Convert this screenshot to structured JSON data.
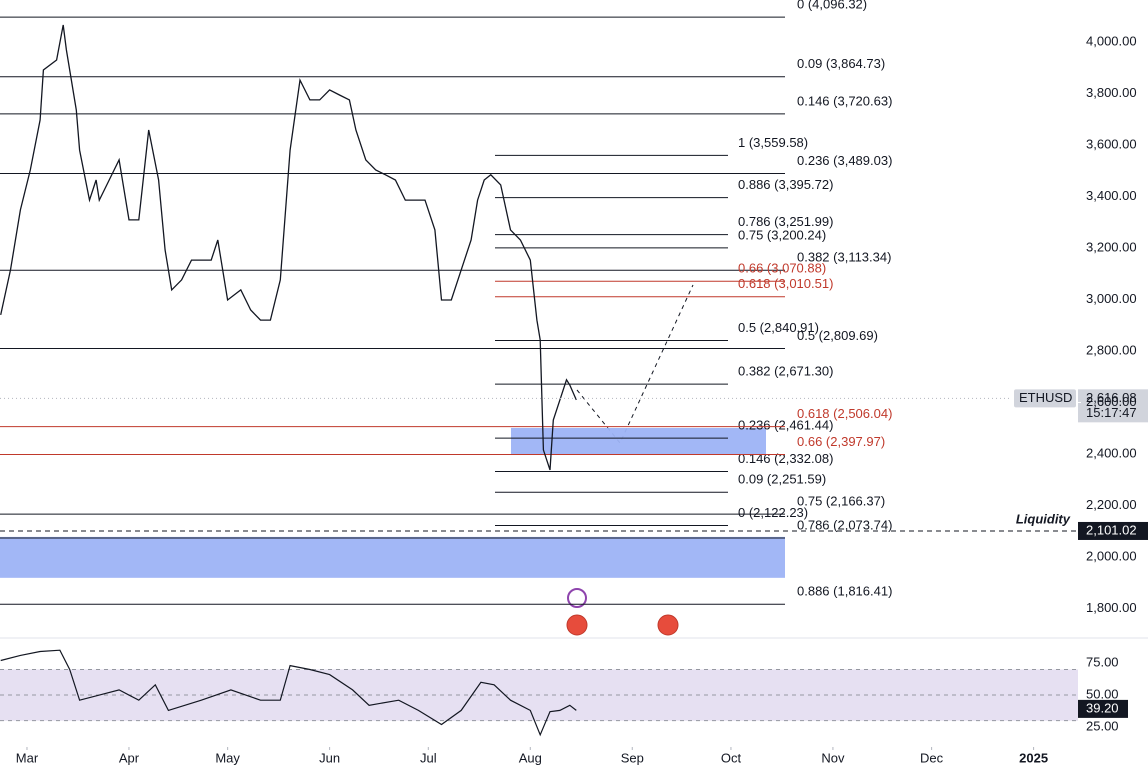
{
  "chart_data": {
    "type": "line",
    "symbol": "ETHUSD",
    "last_price": {
      "value": 2616.08,
      "label": "2,616.08"
    },
    "countdown": "15:17:47",
    "xlim": [
      -8.2,
      319.5
    ],
    "xticks": [
      {
        "value": 0,
        "label": "Mar"
      },
      {
        "value": 31,
        "label": "Apr"
      },
      {
        "value": 61,
        "label": "May"
      },
      {
        "value": 92,
        "label": "Jun"
      },
      {
        "value": 122,
        "label": "Jul"
      },
      {
        "value": 153,
        "label": "Aug"
      },
      {
        "value": 184,
        "label": "Sep"
      },
      {
        "value": 214,
        "label": "Oct"
      },
      {
        "value": 245,
        "label": "Nov"
      },
      {
        "value": 275,
        "label": "Dec"
      },
      {
        "value": 306,
        "label": "2025"
      }
    ],
    "ylim": [
      1697,
      4163
    ],
    "yticks": [
      {
        "value": 1800,
        "label": "1,800.00"
      },
      {
        "value": 2000,
        "label": "2,000.00"
      },
      {
        "value": 2200,
        "label": "2,200.00"
      },
      {
        "value": 2400,
        "label": "2,400.00"
      },
      {
        "value": 2600,
        "label": "2,600.00"
      },
      {
        "value": 2800,
        "label": "2,800.00"
      },
      {
        "value": 3000,
        "label": "3,000.00"
      },
      {
        "value": 3200,
        "label": "3,200.00"
      },
      {
        "value": 3400,
        "label": "3,400.00"
      },
      {
        "value": 3600,
        "label": "3,600.00"
      },
      {
        "value": 3800,
        "label": "3,800.00"
      },
      {
        "value": 4000,
        "label": "4,000.00"
      }
    ],
    "price": {
      "color": "#131722",
      "x": [
        -8,
        -5,
        -2,
        1,
        4,
        5,
        9,
        11,
        12,
        15,
        16,
        19,
        21,
        22,
        25,
        28,
        31,
        34,
        37,
        40,
        42,
        44,
        47,
        50,
        53,
        56,
        58,
        61,
        65,
        68,
        71,
        74,
        77,
        80,
        83,
        86,
        89,
        92,
        95,
        98,
        100,
        103,
        106,
        109,
        112,
        115,
        118,
        121,
        124,
        126,
        129,
        132,
        135,
        137,
        139,
        141,
        144,
        147,
        150,
        153,
        155,
        156,
        157,
        159,
        160,
        162,
        164,
        165,
        167
      ],
      "values": [
        2940,
        3115,
        3348,
        3503,
        3697,
        3891,
        3930,
        4066,
        3969,
        3736,
        3580,
        3386,
        3464,
        3386,
        3464,
        3542,
        3309,
        3309,
        3658,
        3464,
        3192,
        3037,
        3076,
        3153,
        3153,
        3153,
        3231,
        2998,
        3037,
        2959,
        2920,
        2920,
        3076,
        3580,
        3852,
        3775,
        3775,
        3814,
        3794,
        3775,
        3658,
        3542,
        3503,
        3484,
        3464,
        3386,
        3386,
        3386,
        3270,
        2998,
        2998,
        3115,
        3231,
        3386,
        3464,
        3484,
        3445,
        3270,
        3231,
        3153,
        2920,
        2843,
        2416,
        2338,
        2532,
        2610,
        2688,
        2668,
        2610
      ]
    },
    "fib_levels": [
      {
        "color": "#131722",
        "levels": [
          {
            "value": 4096.32,
            "label": "0 (4,096.32)"
          },
          {
            "value": 3864.73,
            "label": "0.09 (3,864.73)"
          },
          {
            "value": 3720.63,
            "label": "0.146 (3,720.63)"
          },
          {
            "value": 3489.03,
            "label": "0.236 (3,489.03)"
          },
          {
            "value": 3113.34,
            "label": "0.382 (3,113.34)"
          },
          {
            "value": 2809.69,
            "label": "0.5 (2,809.69)"
          },
          {
            "value": 2166.37,
            "label": "0.75 (2,166.37)"
          },
          {
            "value": 2073.74,
            "label": "0.786 (2,073.74)"
          },
          {
            "value": 1816.41,
            "label": "0.886 (1,816.41)"
          }
        ]
      },
      {
        "color": "#131722",
        "levels": [
          {
            "value": 3559.58,
            "label": "1 (3,559.58)"
          },
          {
            "value": 3395.72,
            "label": "0.886 (3,395.72)"
          },
          {
            "value": 3251.99,
            "label": "0.786 (3,251.99)"
          },
          {
            "value": 3200.24,
            "label": "0.75 (3,200.24)"
          },
          {
            "value": 2840.91,
            "label": "0.5 (2,840.91)"
          },
          {
            "value": 2671.3,
            "label": "0.382 (2,671.30)"
          },
          {
            "value": 2461.44,
            "label": "0.236 (2,461.44)"
          },
          {
            "value": 2332.08,
            "label": "0.146 (2,332.08)"
          },
          {
            "value": 2251.59,
            "label": "0.09 (2,251.59)"
          },
          {
            "value": 2122.23,
            "label": "0 (2,122.23)"
          }
        ]
      },
      {
        "color": "#c0392b",
        "levels": [
          {
            "value": 3070.88,
            "label": "0.66 (3,070.88)"
          },
          {
            "value": 3010.51,
            "label": "0.618 (3,010.51)"
          }
        ]
      },
      {
        "color": "#c0392b",
        "levels": [
          {
            "value": 2506.04,
            "label": "0.618 (2,506.04)"
          },
          {
            "value": 2397.97,
            "label": "0.66 (2,397.97)"
          }
        ]
      }
    ],
    "zones": [
      {
        "low": 2396,
        "high": 2501,
        "color": "#9db3f5"
      },
      {
        "low": 1919,
        "high": 2078,
        "color": "#9db3f5"
      }
    ],
    "liquidity": {
      "label": "Liquidity",
      "value": 2101.02,
      "value_label": "2,101.02"
    },
    "rsi": {
      "color": "#131722",
      "band_color": "#e6e0f2",
      "x": [
        -8,
        -2,
        4,
        10,
        13,
        16,
        22,
        28,
        34,
        39,
        43,
        53,
        62,
        71,
        77,
        80,
        86,
        92,
        99,
        104,
        113,
        119,
        126,
        132,
        138,
        142,
        147,
        153,
        156,
        159,
        162,
        165,
        167
      ],
      "values": [
        77,
        81,
        84,
        85,
        70,
        46,
        50,
        54,
        46,
        58,
        38,
        46,
        54,
        46,
        46,
        73,
        70,
        66,
        54,
        42,
        46,
        38,
        27,
        38,
        60,
        58,
        46,
        38,
        19,
        37,
        38,
        42,
        38
      ],
      "ylim": [
        11,
        93
      ],
      "yticks": [
        {
          "value": 25,
          "label": "25.00"
        },
        {
          "value": 50,
          "label": "50.00"
        },
        {
          "value": 75,
          "label": "75.00"
        }
      ],
      "band": [
        30,
        70
      ],
      "last": {
        "value": 39.2,
        "label": "39.20"
      }
    }
  }
}
